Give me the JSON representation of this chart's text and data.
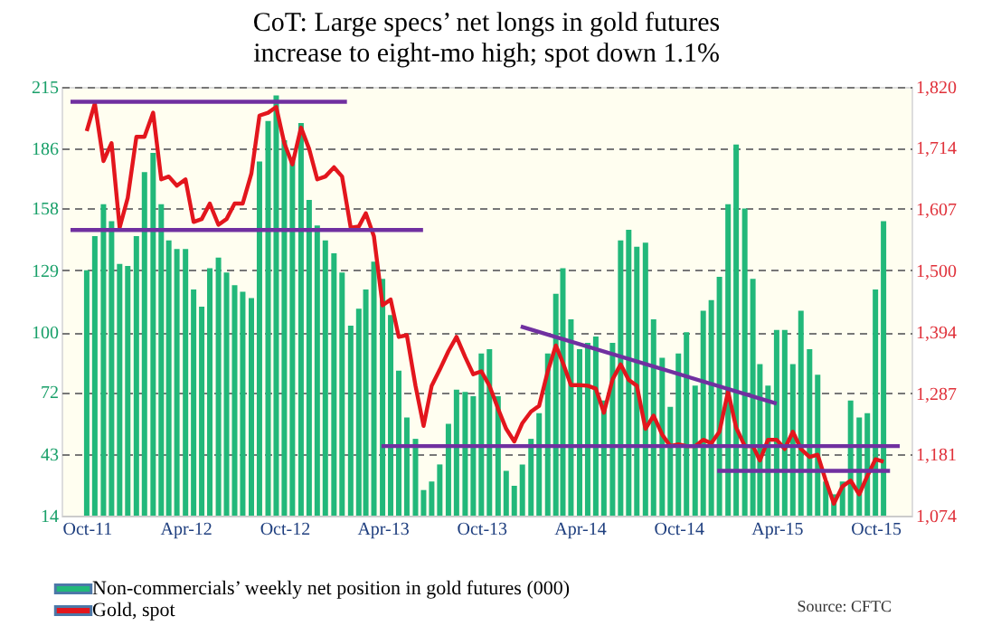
{
  "chart_data": {
    "type": "bar",
    "title": "CoT: Large specs’ net longs in gold futures increase to eight-mo high; spot down 1.1%",
    "x": [
      "2011-10-01",
      "2011-10-16",
      "2011-11-01",
      "2011-11-16",
      "2011-12-01",
      "2011-12-16",
      "2012-01-01",
      "2012-01-16",
      "2012-02-01",
      "2012-02-16",
      "2012-03-01",
      "2012-03-16",
      "2012-04-01",
      "2012-04-16",
      "2012-05-01",
      "2012-05-16",
      "2012-06-01",
      "2012-06-16",
      "2012-07-01",
      "2012-07-16",
      "2012-08-01",
      "2012-08-16",
      "2012-09-01",
      "2012-09-16",
      "2012-10-01",
      "2012-10-16",
      "2012-11-01",
      "2012-11-16",
      "2012-12-01",
      "2012-12-16",
      "2013-01-01",
      "2013-01-16",
      "2013-02-01",
      "2013-02-16",
      "2013-03-01",
      "2013-03-16",
      "2013-04-01",
      "2013-04-16",
      "2013-05-01",
      "2013-05-16",
      "2013-06-01",
      "2013-06-16",
      "2013-07-01",
      "2013-07-16",
      "2013-08-01",
      "2013-08-16",
      "2013-09-01",
      "2013-09-16",
      "2013-10-01",
      "2013-10-16",
      "2013-11-01",
      "2013-11-16",
      "2013-12-01",
      "2013-12-16",
      "2014-01-01",
      "2014-01-16",
      "2014-02-01",
      "2014-02-16",
      "2014-03-01",
      "2014-03-16",
      "2014-04-01",
      "2014-04-16",
      "2014-05-01",
      "2014-05-16",
      "2014-06-01",
      "2014-06-16",
      "2014-07-01",
      "2014-07-16",
      "2014-08-01",
      "2014-08-16",
      "2014-09-01",
      "2014-09-16",
      "2014-10-01",
      "2014-10-16",
      "2014-11-01",
      "2014-11-16",
      "2014-12-01",
      "2014-12-16",
      "2015-01-01",
      "2015-01-16",
      "2015-02-01",
      "2015-02-16",
      "2015-03-01",
      "2015-03-16",
      "2015-04-01",
      "2015-04-16",
      "2015-05-01",
      "2015-05-16",
      "2015-06-01",
      "2015-06-16",
      "2015-07-01",
      "2015-07-16",
      "2015-08-01",
      "2015-08-16",
      "2015-09-01",
      "2015-09-16",
      "2015-10-01",
      "2015-10-16"
    ],
    "series": [
      {
        "name": "Non-commercials’ weekly net position in gold futures (000)",
        "color": "#22b87a",
        "values": [
          129,
          145,
          160,
          152,
          132,
          131,
          145,
          175,
          184,
          160,
          143,
          139,
          139,
          120,
          112,
          130,
          135,
          128,
          122,
          119,
          116,
          180,
          199,
          211,
          190,
          180,
          198,
          162,
          150,
          143,
          137,
          128,
          103,
          111,
          120,
          133,
          125,
          108,
          82,
          60,
          50,
          26,
          30,
          38,
          57,
          73,
          72,
          70,
          90,
          92,
          70,
          35,
          28,
          38,
          50,
          62,
          90,
          118,
          130,
          106,
          92,
          95,
          98,
          68,
          95,
          143,
          148,
          140,
          142,
          106,
          88,
          65,
          90,
          100,
          75,
          110,
          115,
          126,
          160,
          188,
          158,
          125,
          85,
          75,
          101,
          101,
          85,
          110,
          92,
          80,
          30,
          24,
          30,
          68,
          60,
          62,
          120,
          152
        ]
      },
      {
        "name": "Gold, spot",
        "type": "line",
        "axis": "y2",
        "color": "#e3161d",
        "values": [
          1743,
          1791,
          1691,
          1722,
          1575,
          1627,
          1733,
          1733,
          1775,
          1659,
          1664,
          1648,
          1659,
          1585,
          1590,
          1617,
          1580,
          1590,
          1617,
          1617,
          1669,
          1770,
          1775,
          1785,
          1722,
          1685,
          1749,
          1712,
          1659,
          1664,
          1680,
          1664,
          1575,
          1577,
          1600,
          1560,
          1440,
          1450,
          1385,
          1388,
          1300,
          1230,
          1300,
          1328,
          1360,
          1385,
          1350,
          1320,
          1325,
          1300,
          1260,
          1225,
          1203,
          1235,
          1255,
          1265,
          1325,
          1370,
          1340,
          1301,
          1301,
          1300,
          1295,
          1253,
          1311,
          1337,
          1310,
          1300,
          1225,
          1248,
          1215,
          1195,
          1198,
          1195,
          1195,
          1206,
          1200,
          1220,
          1290,
          1227,
          1195,
          1195,
          1170,
          1206,
          1206,
          1190,
          1220,
          1190,
          1176,
          1180,
          1135,
          1095,
          1125,
          1135,
          1111,
          1143,
          1172,
          1168
        ]
      },
      {
        "type": "line",
        "axis": "y2",
        "color": "#7030a0",
        "x": [
          "2011-09-01",
          "2013-01-25"
        ],
        "values": [
          1794,
          1794
        ]
      },
      {
        "type": "line",
        "axis": "y2",
        "color": "#7030a0",
        "x": [
          "2011-09-01",
          "2013-06-15"
        ],
        "values": [
          1571,
          1571
        ]
      },
      {
        "type": "line",
        "axis": "y2",
        "color": "#7030a0",
        "x": [
          "2013-03-30",
          "2015-11-15"
        ],
        "values": [
          1195,
          1195
        ]
      },
      {
        "type": "line",
        "axis": "y2",
        "color": "#7030a0",
        "x": [
          "2014-12-12",
          "2015-10-28"
        ],
        "values": [
          1152,
          1152
        ]
      },
      {
        "type": "line",
        "axis": "y2",
        "color": "#7030a0",
        "x": [
          "2013-12-13",
          "2015-04-01"
        ],
        "values": [
          1403,
          1269
        ]
      }
    ],
    "xlim": [
      "2011-09-01",
      "2015-11-20"
    ],
    "xticks": [
      {
        "value": "2011-10-01",
        "label": "Oct-11"
      },
      {
        "value": "2012-04-01",
        "label": "Apr-12"
      },
      {
        "value": "2012-10-01",
        "label": "Oct-12"
      },
      {
        "value": "2013-04-01",
        "label": "Apr-13"
      },
      {
        "value": "2013-10-01",
        "label": "Oct-13"
      },
      {
        "value": "2014-04-01",
        "label": "Apr-14"
      },
      {
        "value": "2014-10-01",
        "label": "Oct-14"
      },
      {
        "value": "2015-04-01",
        "label": "Apr-15"
      },
      {
        "value": "2015-10-01",
        "label": "Oct-15"
      }
    ],
    "ylim": [
      14,
      215
    ],
    "yticks": [
      14,
      43,
      72,
      100,
      129,
      158,
      186,
      215
    ],
    "y2lim": [
      1074,
      1820
    ],
    "y2ticks": [
      {
        "value": 1074,
        "label": "1,074"
      },
      {
        "value": 1181,
        "label": "1,181"
      },
      {
        "value": 1287,
        "label": "1,287"
      },
      {
        "value": 1394,
        "label": "1,394"
      },
      {
        "value": 1500,
        "label": "1,500"
      },
      {
        "value": 1607,
        "label": "1,607"
      },
      {
        "value": 1714,
        "label": "1,714"
      },
      {
        "value": 1820,
        "label": "1,820"
      }
    ],
    "grid": "y",
    "legend": "bottom",
    "annotations": [
      "Source: CFTC"
    ]
  }
}
